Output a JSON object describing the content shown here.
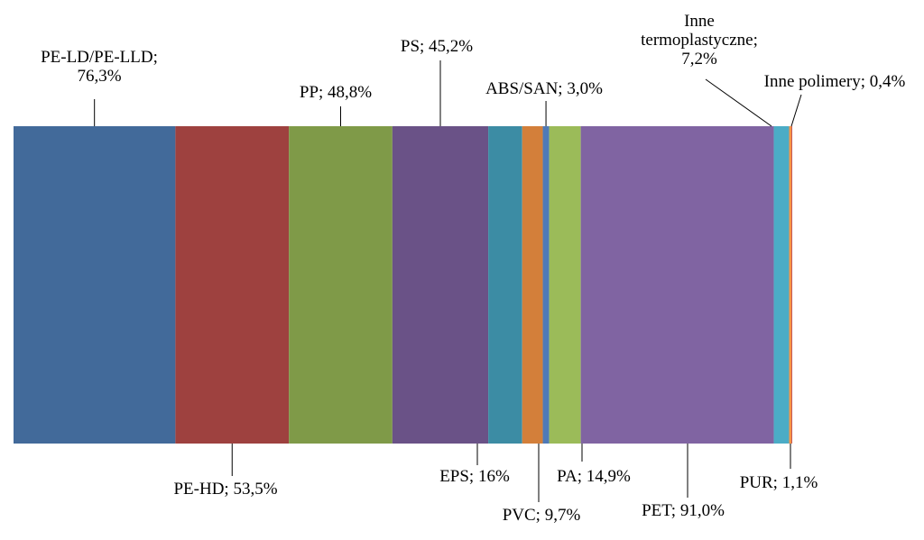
{
  "chart_data": {
    "type": "bar",
    "orientation": "horizontal-stacked",
    "series": [
      {
        "category": "PE-LD/PE-LLD",
        "value": 76.3,
        "label": "PE-LD/PE-LLD; 76,3%",
        "color": "#426A9A"
      },
      {
        "category": "PE-HD",
        "value": 53.5,
        "label": "PE-HD; 53,5%",
        "color": "#9E413F"
      },
      {
        "category": "PP",
        "value": 48.8,
        "label": "PP; 48,8%",
        "color": "#7F9A48"
      },
      {
        "category": "PS",
        "value": 45.2,
        "label": "PS; 45,2%",
        "color": "#6A5287"
      },
      {
        "category": "EPS",
        "value": 16,
        "label": "EPS; 16%",
        "color": "#3C8CA4"
      },
      {
        "category": "PVC",
        "value": 9.7,
        "label": "PVC; 9,7%",
        "color": "#D37F3A"
      },
      {
        "category": "ABS/SAN",
        "value": 3.0,
        "label": "ABS/SAN; 3,0%",
        "color": "#4F7AB7"
      },
      {
        "category": "PA",
        "value": 14.9,
        "label": "PA; 14,9%",
        "color": "#9BBB59"
      },
      {
        "category": "PET",
        "value": 91.0,
        "label": "PET; 91,0%",
        "color": "#8064A2"
      },
      {
        "category": "Inne termoplastyczne",
        "value": 7.2,
        "label": "Inne termoplastyczne; 7,2%",
        "color": "#4BACC6"
      },
      {
        "category": "PUR",
        "value": 1.1,
        "label": "PUR; 1,1%",
        "color": "#F79646"
      },
      {
        "category": "Inne polimery",
        "value": 0.4,
        "label": "Inne polimery; 0,4%",
        "color": "#C0504D"
      }
    ],
    "title": "",
    "legend": "none"
  }
}
